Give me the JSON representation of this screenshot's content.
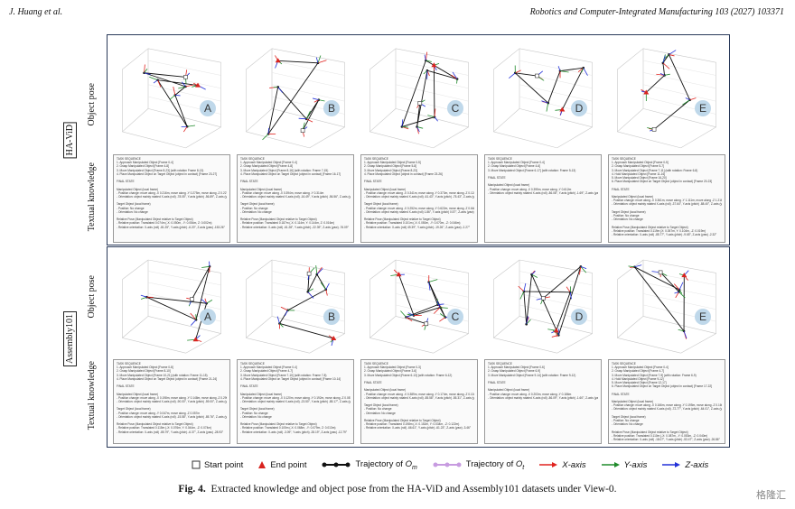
{
  "header": {
    "authors": "J. Huang et al.",
    "journal": "Robotics and Computer-Integrated Manufacturing 103 (2027) 103371"
  },
  "datasets": [
    {
      "name": "HA-ViD",
      "row_labels": [
        "Object pose",
        "Textual knowledge"
      ],
      "panels": [
        {
          "label": "A",
          "text": [
            "TASK SEQUENCE",
            "1. Approach Manipulated Object [Frame 0-4]",
            "2. Grasp Manipulated Object [Frame 4-8]",
            "3. Move Manipulated Object [Frame 8-23] (with rotation Frame 8-13)",
            "4. Place Manipulated Object on Target Object (object in contact) [Frame 23-27]",
            "",
            "FINAL STATE",
            "",
            "Manipulated Object (local frame)",
            "- Position change: move along -X 0.216m, move along -Y 0.275m, move along -Z 0.227m",
            "- Orientation: object mainly rotated X-axis (roll) -78.05°, Y-axis (pitch) -56.89°, Z-axis (yaw) -77.21°",
            "",
            "Target Object (local frame)",
            "- Position: No change",
            "- Orientation: No change",
            "",
            "Relative Pose (Manipulated Object relative to Target Object)",
            "- Relative position: Translated 0.074m (-X: 0.050m, -Y: 0.054m, Z: 0.002m)",
            "- Relative orientation: X-axis (roll) -81.25°, Y-axis (pitch) -6.20°, Z-axis (yaw) -153.26°"
          ]
        },
        {
          "label": "B",
          "text": [
            "TASK SEQUENCE",
            "1. Approach Manipulated Object [Frame 0-4]",
            "2. Grasp Manipulated Object [Frame 4-8]",
            "3. Move Manipulated Object [Frame 8-16] (with rotation: Frame 7-15)",
            "4. Place Manipulated Object on Target Object (object in contact) [Frame 16-17]",
            "",
            "FINAL STATE",
            "",
            "Manipulated Object (local frame)",
            "- Position change: move along -X 0.394m, move along -Y 0.314m",
            "- Orientation: object mainly rotated X-axis (roll) -16.49°, Y-axis (pitch) -56.56°, Z-axis (yaw) -89.41°",
            "",
            "Target Object (local frame)",
            "- Position: No change",
            "- Orientation: No change",
            "",
            "Relative Pose (Manipulated Object relative to Target Object)",
            "- Relative position: Translated 0.187m (-X: 0.114m, Y: 0.144m, Z: 0.016m)",
            "- Relative orientation: X-axis (roll) -61.28°, Y-axis (pitch) -22.39°, Z-axis (yaw) -76.09°"
          ]
        },
        {
          "label": "C",
          "text": [
            "TASK SEQUENCE",
            "1. Approach Manipulated Object [Frame 0-5]",
            "2. Grasp Manipulated Object [Frame 5-8]",
            "3. Move Manipulated Object [Frame 8-23]",
            "4. Place Manipulated Object (object in contact) [Frame 23-26]",
            "",
            "FINAL STATE",
            "",
            "Manipulated Object (local frame)",
            "- Position change: move along -X 0.341m, move along -Y 0.373m, move along -Z 0.124m",
            "- Orientation: object mainly rotated X-axis (roll) -61.43°, Y-axis (pitch) -75.43°, Z-axis (yaw) -61.24°",
            "",
            "Target Object (local frame)",
            "- Position change: move along -X 0.252m, move along -Y 0.622m, move along -Z 0.648m",
            "- Orientation: object mainly rotated X-axis (roll) 1.86°, Y-axis (pitch) 0.57°, Z-axis (yaw) -97.36°",
            "",
            "Relative Pose (Manipulated Object relative to Target Object)",
            "- Relative position: Translated 0.101m (-X: 0.050m, -Y: 0.070m, -Z: 0.046m)",
            "- Relative orientation: X-axis (roll) 49.39°, Y-axis (pitch) -19.26°, Z-axis (yaw) -2.27°"
          ]
        },
        {
          "label": "D",
          "text": [
            "TASK SEQUENCE",
            "1. Approach Manipulated Object [Frame 0-4]",
            "2. Grasp Manipulated Object [Frame 4-6]",
            "3. Move Manipulated Object [Frame 6-17] (with rotation: Frame 5-13)",
            "",
            "FINAL STATE",
            "",
            "Manipulated Object (local frame)",
            "- Position change: move along -X 0.395m, move along -Y 0.612m",
            "- Orientation: object mainly rotated X-axis (roll) -86.08°, Y-axis (pitch) -1.69°, Z-axis (yaw) -92.77°"
          ]
        },
        {
          "label": "E",
          "text": [
            "TASK SEQUENCE",
            "1. Approach Manipulated Object [Frame 0-5]",
            "2. Grasp Manipulated Object [Frame 5-7]",
            "3. Move Manipulated Object [Frame 7-11] (with rotation: Frame 6-8)",
            "4. Hold Manipulated Object [Frame 11-16]",
            "5. Move Manipulated Object [Frame 16-20]",
            "6. Place Manipulated Object on Target Object (object in contact) [Frame 20-23]",
            "",
            "FINAL STATE",
            "",
            "Manipulated Object (local frame)",
            "- Position change: move along -X 0.361m, move along -Y 1.111m, move along -Z 1.216m",
            "- Orientation: object mainly rotated X-axis (roll) -37.64°, Y-axis (pitch) -88.40°, Z-axis (yaw) -18.48°",
            "",
            "Target Object (local frame)",
            "- Position: No change",
            "- Orientation: No change",
            "",
            "Relative Pose (Manipulated Object relative to Target Object)",
            "- Relative position: Translated 0.119m (X: 0.057m, Y: 0.104m, -Z: 0.019m)",
            "- Relative orientation: X-axis (roll) -85.77°, Y-axis (pitch) -9.65°, Z-axis (yaw) -2.32°"
          ]
        }
      ]
    },
    {
      "name": "Assembly101",
      "row_labels": [
        "Object pose",
        "Textual knowledge"
      ],
      "panels": [
        {
          "label": "A",
          "text": [
            "TASK SEQUENCE",
            "1. Approach Manipulated Object [Frame 0-8]",
            "2. Grasp Manipulated Object [Frame 8-10]",
            "3. Move Manipulated Object [Frame 10-21] (with rotation: Frame 11-15)",
            "4. Place Manipulated Object on Target Object (object in contact) [Frame 21-24]",
            "",
            "FINAL STATE",
            "",
            "Manipulated Object (local frame)",
            "- Position change: move along -X 0.198m, move along -Y 0.148m, move along -Z 0.290m",
            "- Orientation: object mainly rotated X-axis (roll) -90.00°, Y-axis (pitch) -59.00°, Z-axis (yaw) -68.20°",
            "",
            "Target Object (local frame)",
            "- Position change: move along -Y 0.047m, move along -Z 0.057m",
            "- Orientation: object mainly rotated X-axis (roll) -15.58°, Y-axis (pitch) -85.76°, Z-axis (yaw) -4.00°",
            "",
            "Relative Pose (Manipulated Object relative to Target Object)",
            "- Relative position: Translated 0.115m (-X: 0.076m, Y: 0.044m, -Z: 0.074m)",
            "- Relative orientation: X-axis (roll) -85.79°, Y-axis (pitch) -6.37°, Z-axis (yaw) -28.93°"
          ]
        },
        {
          "label": "B",
          "text": [
            "TASK SEQUENCE",
            "1. Approach Manipulated Object [Frame 0-4]",
            "2. Grasp Manipulated Object [Frame 4-7]",
            "3. Move Manipulated Object [Frame 7-10] (with rotation: Frame 7-8)",
            "4. Place Manipulated Object on Target Object (object in contact) [Frame 10-14]",
            "",
            "FINAL STATE",
            "",
            "Manipulated Object (local frame)",
            "- Position change: move along -X 0.120m, move along -Y 0.192m, move along -Z 0.087m",
            "- Orientation: object mainly rotated X-axis (roll) -23.50°, Y-axis (pitch) -85.17°, Z-axis (yaw) -89.96°",
            "",
            "Target Object (local frame)",
            "- Position: No change",
            "- Orientation: No change",
            "",
            "Relative Pose (Manipulated Object relative to Target Object)",
            "- Relative position: Translated 0.105m (-X: 0.068m, -Y: 0.079m, Z: 0.013m)",
            "- Relative orientation: X-axis (roll) -3.09°, Y-axis (pitch) -28.19°, Z-axis (yaw) -12.79°"
          ]
        },
        {
          "label": "C",
          "text": [
            "TASK SEQUENCE",
            "1. Approach Manipulated Object [Frame 0-3]",
            "2. Grasp Manipulated Object [Frame 3-6]",
            "3. Move Manipulated Object [Frame 6-13] (with rotation: Frame 6-12)",
            "",
            "FINAL STATE",
            "",
            "Manipulated Object (local frame)",
            "- Position change: move along -X 0.389m, move along -Y 0.174m, move along -Z 0.104m",
            "- Orientation: object mainly rotated X-axis (roll) -85.58°, Y-axis (pitch) -55.31°, Z-axis (yaw) -31.21°",
            "",
            "Target Object (local frame)",
            "- Position: No change",
            "- Orientation: No change",
            "",
            "Relative Pose (Manipulated Object relative to Target Object)",
            "- Relative position: Translated 0.198m (-X: 0.152m, Y: 0.034m, -Z: 0.122m)",
            "- Relative orientation: X-axis (roll) -66.61°, Y-axis (pitch) -61.23°, Z-axis (yaw) -3.46°"
          ]
        },
        {
          "label": "D",
          "text": [
            "TASK SEQUENCE",
            "1. Approach Manipulated Object [Frame 0-6]",
            "2. Grasp Manipulated Object [Frame 6-9]",
            "3. Move Manipulated Object [Frame 9-14] (with rotation: Frame 9-12)",
            "",
            "FINAL STATE",
            "",
            "Manipulated Object (local frame)",
            "- Position change: move along -X 0.203m, move along -Y 0.186m",
            "- Orientation: object mainly rotated X-axis (roll) -86.09°, Y-axis (pitch) -1.60°, Z-axis (yaw) -7.49°"
          ]
        },
        {
          "label": "E",
          "text": [
            "TASK SEQUENCE",
            "1. Approach Manipulated Object [Frame 0-4]",
            "2. Grasp Manipulated Object [Frame 4-7]",
            "3. Move Manipulated Object [Frame 7-9] (with rotation: Frame 6-9)",
            "4. Hold Manipulated Object [Frame 9-12]",
            "5. Move Manipulated Object [Frame 12-17]",
            "6. Place Manipulated Object on Target Object (object in contact) [Frame 17-22]",
            "",
            "FINAL STATE",
            "",
            "Manipulated Object (local frame)",
            "- Position change: move along -X 0.166m, move along -Y 0.195m, move along -Z 0.160m",
            "- Orientation: object mainly rotated X-axis (roll) -72.77°, Y-axis (pitch) -64.01°, Z-axis (yaw) -80.75°",
            "",
            "Target Object (local frame)",
            "- Position: No change",
            "- Orientation: No change",
            "",
            "Relative Pose (Manipulated Object relative to Target Object)",
            "- Relative position: Translated 0.110m (-X: 0.087m, -Y: 0.053m, -Z: 0.040m)",
            "- Relative orientation: X-axis (roll) -18.07°, Y-axis (pitch) -53.47°, Z-axis (yaw) -26.86°"
          ]
        }
      ]
    }
  ],
  "legend": {
    "start": "Start point",
    "end": "End point",
    "traj_om_prefix": "Trajectory of ",
    "traj_om_sym": "O",
    "traj_om_sub": "m",
    "traj_ot_prefix": "Trajectory of ",
    "traj_ot_sym": "O",
    "traj_ot_sub": "t",
    "x_axis": "X-axis",
    "y_axis": "Y-axis",
    "z_axis": "Z-axis",
    "colors": {
      "x": "#e0231f",
      "y": "#1f8a2a",
      "z": "#2230d8",
      "om": "#111111",
      "ot": "#c79be0",
      "end": "#d8231f"
    }
  },
  "caption": {
    "label": "Fig. 4.",
    "text": "Extracted knowledge and object pose from the HA-ViD and Assembly101 datasets under View-0."
  },
  "watermark": "格隆汇"
}
